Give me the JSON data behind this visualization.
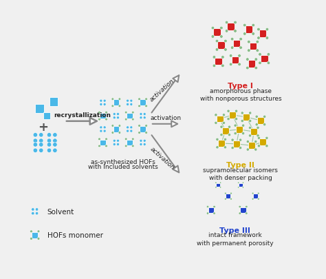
{
  "bg_color": "#f0f0f0",
  "cyan_color": "#4ab8e8",
  "red_color": "#d42020",
  "yellow_color": "#d4aa00",
  "blue_color": "#2244cc",
  "green_connector": "#88bb88",
  "text_color": "#222222",
  "title_type1": "Type I",
  "title_type2": "Type II",
  "title_type3": "Type III",
  "desc_type1": "amorphorous phase\nwith nonporous structures",
  "desc_type2": "supramolecular isomers\nwith denser packing",
  "desc_type3": "intact framework\nwith permanent porosity",
  "label_recryst": "recrystallization",
  "label_activation": "activation",
  "label_as_synth1": "as-synthesized HOFs",
  "label_as_synth2": "with included solvents",
  "label_solvent": "Solvent",
  "label_hofs": "HOFs monomer"
}
